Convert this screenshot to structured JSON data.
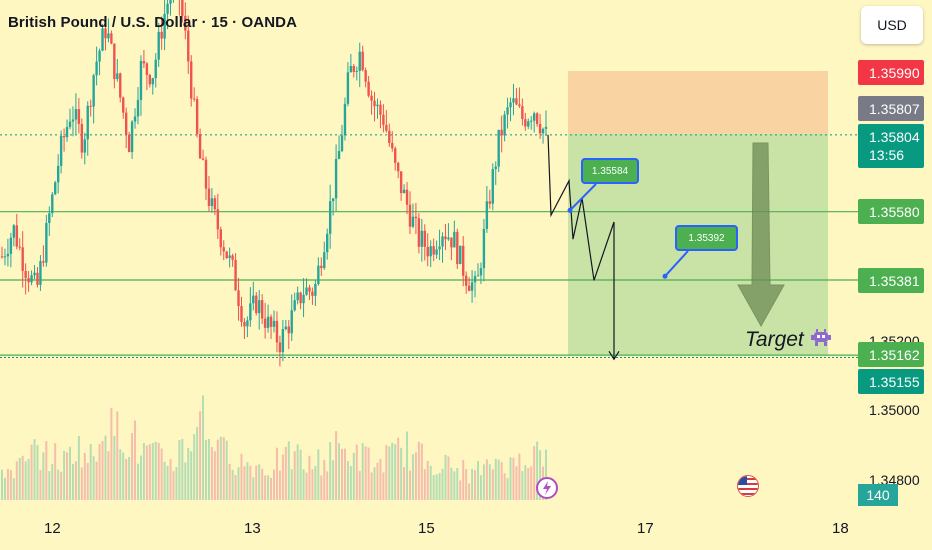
{
  "header": {
    "title": "British Pound / U.S. Dollar · 15 · OANDA"
  },
  "currency_button": "USD",
  "price_labels": {
    "stop_loss": "1.35990",
    "gray": "1.35807",
    "current_price": "1.35804",
    "countdown": "13:56",
    "level_1": "1.35580",
    "level_2": "1.35381",
    "level_3": "1.35162",
    "level_4": "1.35155"
  },
  "axis_prices": {
    "p1": "1.35200",
    "p2": "1.35000",
    "p3": "1.34800"
  },
  "volume_label": "140",
  "x_labels": {
    "d12": "12",
    "d13": "13",
    "d15": "15",
    "d17": "17",
    "d18": "18"
  },
  "callouts": {
    "c1": "1.35584",
    "c2": "1.35392"
  },
  "target_text": "Target",
  "icons": {
    "target": "alien-monster-icon",
    "event_1": "lightning-bolt-icon",
    "event_2": "us-flag-icon"
  },
  "colors": {
    "background": "#fff7c2",
    "up": "#26a69a",
    "down": "#ef5350",
    "stop_zone": "#f8cf9f",
    "target_zone": "#c3dfa3",
    "level_line": "#4caf50"
  },
  "chart_data": {
    "type": "candlestick",
    "symbol": "British Pound / U.S. Dollar",
    "timeframe": "15",
    "x_ticks": [
      "12",
      "13",
      "15",
      "17",
      "18"
    ],
    "ylim": [
      1.3478,
      1.3622
    ],
    "horizontal_levels": [
      1.3558,
      1.35381,
      1.35162
    ],
    "current_price": 1.35804,
    "position": {
      "entry": 1.35807,
      "stop": 1.3599,
      "target": 1.35162
    },
    "projected_path": [
      1.35804,
      1.3557,
      1.3567,
      1.355,
      1.3562,
      1.3538,
      1.3555,
      1.3515
    ],
    "callouts": [
      1.35584,
      1.35392
    ],
    "close_series": [
      1.3545,
      1.3553,
      1.3542,
      1.3535,
      1.3555,
      1.3575,
      1.3588,
      1.3578,
      1.36,
      1.3612,
      1.3595,
      1.3578,
      1.36,
      1.3598,
      1.3615,
      1.3628,
      1.3605,
      1.3575,
      1.356,
      1.355,
      1.354,
      1.3525,
      1.3532,
      1.3525,
      1.352,
      1.3527,
      1.3535,
      1.3535,
      1.3553,
      1.3572,
      1.3598,
      1.3605,
      1.359,
      1.3585,
      1.357,
      1.356,
      1.355,
      1.3547,
      1.3553,
      1.355,
      1.354,
      1.3535,
      1.356,
      1.358,
      1.359,
      1.3585,
      1.3588,
      1.358
    ],
    "volume_shape": [
      0.35,
      0.4,
      0.55,
      0.5,
      0.45,
      0.6,
      0.5,
      0.9,
      0.8,
      0.7,
      0.55,
      0.5,
      0.45,
      0.6,
      1.0,
      0.75,
      0.55,
      0.45,
      0.4,
      0.35,
      0.45,
      0.5,
      0.4,
      0.45,
      0.6,
      0.55,
      0.5,
      0.4,
      0.5,
      0.6,
      0.5,
      0.45,
      0.4,
      0.35,
      0.3,
      0.35,
      0.45,
      0.4,
      0.5,
      0.55,
      0.45
    ]
  }
}
